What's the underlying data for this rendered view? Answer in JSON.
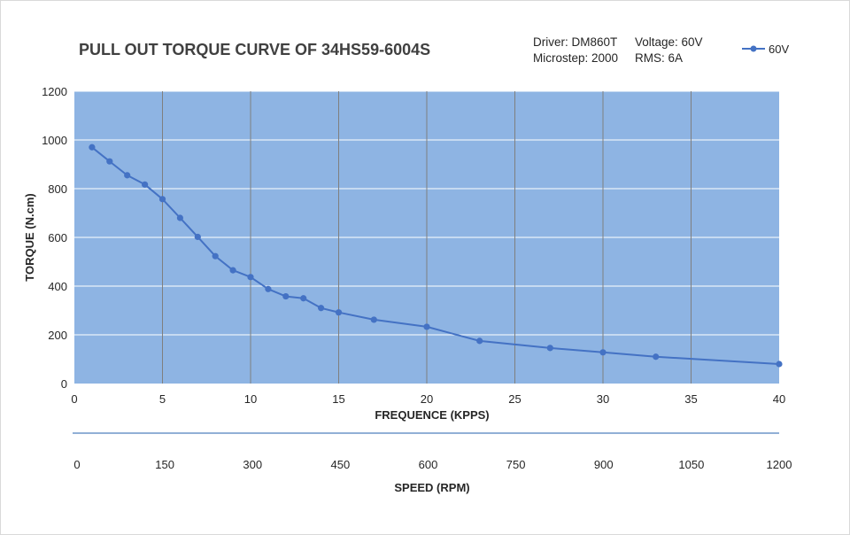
{
  "chart_data": {
    "type": "line",
    "title": "PULL OUT TORQUE CURVE OF 34HS59-6004S",
    "info": {
      "driver": "Driver: DM860T",
      "microstep": "Microstep: 2000",
      "voltage": "Voltage: 60V",
      "rms": "RMS: 6A"
    },
    "xlabel": "FREQUENCE (KPPS)",
    "ylabel": "TORQUE (N.cm)",
    "xlim": [
      0,
      40
    ],
    "ylim": [
      0,
      1200
    ],
    "xticks": [
      "0",
      "5",
      "10",
      "15",
      "20",
      "25",
      "30",
      "35",
      "40"
    ],
    "yticks": [
      "0",
      "200",
      "400",
      "600",
      "800",
      "1000",
      "1200"
    ],
    "secondary_axis": {
      "label": "SPEED (RPM)",
      "ticks": [
        "0",
        "150",
        "300",
        "450",
        "600",
        "750",
        "900",
        "1050",
        "1200"
      ]
    },
    "grid": true,
    "legend_position": "top-right",
    "series": [
      {
        "name": "60V",
        "color": "#4472c4",
        "x": [
          1,
          2,
          3,
          4,
          5,
          6,
          7,
          8,
          9,
          10,
          11,
          12,
          13,
          14,
          15,
          17,
          20,
          23,
          27,
          30,
          33,
          40
        ],
        "y": [
          970,
          912,
          855,
          817,
          757,
          680,
          602,
          523,
          465,
          437,
          388,
          358,
          350,
          310,
          292,
          262,
          233,
          175,
          146,
          128,
          110,
          80
        ]
      }
    ]
  },
  "colors": {
    "plot_background": "#8eb4e3",
    "grid_line": "#7f7f7f",
    "series": "#4472c4",
    "secondary_axis_line": "#4f81bd"
  }
}
